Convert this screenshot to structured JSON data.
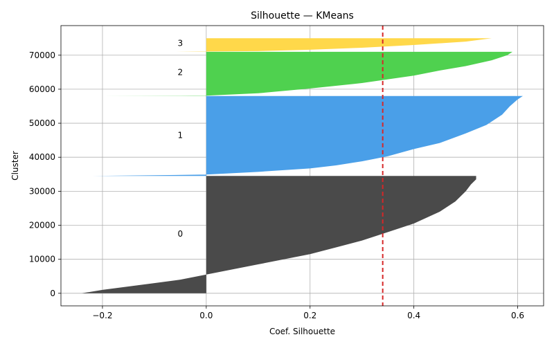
{
  "chart_data": {
    "type": "area",
    "title": "Silhouette — KMeans",
    "xlabel": "Coef. Silhouette",
    "ylabel": "Cluster",
    "xlim": [
      -0.28,
      0.65
    ],
    "ylim": [
      -3700,
      78700
    ],
    "x_ticks": [
      -0.2,
      0.0,
      0.2,
      0.4,
      0.6
    ],
    "x_tick_labels": [
      "−0.2",
      "0.0",
      "0.2",
      "0.4",
      "0.6"
    ],
    "y_ticks": [
      0,
      10000,
      20000,
      30000,
      40000,
      50000,
      60000,
      70000
    ],
    "y_tick_labels": [
      "0",
      "10000",
      "20000",
      "30000",
      "40000",
      "50000",
      "60000",
      "70000"
    ],
    "grid": true,
    "average_line": {
      "x": 0.34,
      "color": "#d62728",
      "style": "dashed"
    },
    "clusters": [
      {
        "label": "0",
        "color": "#4a4a4a",
        "y_start": 0,
        "y_end": 34500,
        "label_position": [
          -0.05,
          17500
        ],
        "profile": [
          [
            -0.24,
            0
          ],
          [
            -0.2,
            1000
          ],
          [
            -0.15,
            2000
          ],
          [
            -0.1,
            3000
          ],
          [
            -0.05,
            4000
          ],
          [
            0.0,
            5500
          ],
          [
            0.05,
            7000
          ],
          [
            0.1,
            8500
          ],
          [
            0.15,
            10000
          ],
          [
            0.2,
            11500
          ],
          [
            0.25,
            13500
          ],
          [
            0.3,
            15500
          ],
          [
            0.35,
            18000
          ],
          [
            0.4,
            20500
          ],
          [
            0.45,
            24000
          ],
          [
            0.48,
            27000
          ],
          [
            0.5,
            30000
          ],
          [
            0.51,
            32000
          ],
          [
            0.52,
            33500
          ],
          [
            0.52,
            34500
          ]
        ]
      },
      {
        "label": "1",
        "color": "#4a9fe8",
        "y_start": 34500,
        "y_end": 58000,
        "label_position": [
          -0.05,
          46500
        ],
        "profile": [
          [
            -0.22,
            34500
          ],
          [
            -0.1,
            34700
          ],
          [
            0.0,
            34900
          ],
          [
            0.1,
            35700
          ],
          [
            0.2,
            36700
          ],
          [
            0.25,
            37600
          ],
          [
            0.3,
            38800
          ],
          [
            0.35,
            40300
          ],
          [
            0.4,
            42400
          ],
          [
            0.45,
            44200
          ],
          [
            0.5,
            47000
          ],
          [
            0.54,
            49500
          ],
          [
            0.57,
            52500
          ],
          [
            0.585,
            55000
          ],
          [
            0.6,
            57000
          ],
          [
            0.61,
            58000
          ]
        ]
      },
      {
        "label": "2",
        "color": "#4fd14f",
        "y_start": 58000,
        "y_end": 71000,
        "label_position": [
          -0.05,
          65000
        ],
        "profile": [
          [
            -0.2,
            58000
          ],
          [
            -0.05,
            58050
          ],
          [
            0.0,
            58100
          ],
          [
            0.1,
            58800
          ],
          [
            0.2,
            60200
          ],
          [
            0.3,
            61800
          ],
          [
            0.4,
            64000
          ],
          [
            0.45,
            65500
          ],
          [
            0.5,
            66800
          ],
          [
            0.55,
            68500
          ],
          [
            0.58,
            70000
          ],
          [
            0.59,
            71000
          ]
        ]
      },
      {
        "label": "3",
        "color": "#ffd84a",
        "y_start": 71000,
        "y_end": 75000,
        "label_position": [
          -0.05,
          73500
        ],
        "profile": [
          [
            -0.06,
            71000
          ],
          [
            0.0,
            71100
          ],
          [
            0.1,
            71200
          ],
          [
            0.2,
            71600
          ],
          [
            0.3,
            72200
          ],
          [
            0.4,
            73000
          ],
          [
            0.5,
            74000
          ],
          [
            0.55,
            75000
          ]
        ]
      }
    ]
  }
}
